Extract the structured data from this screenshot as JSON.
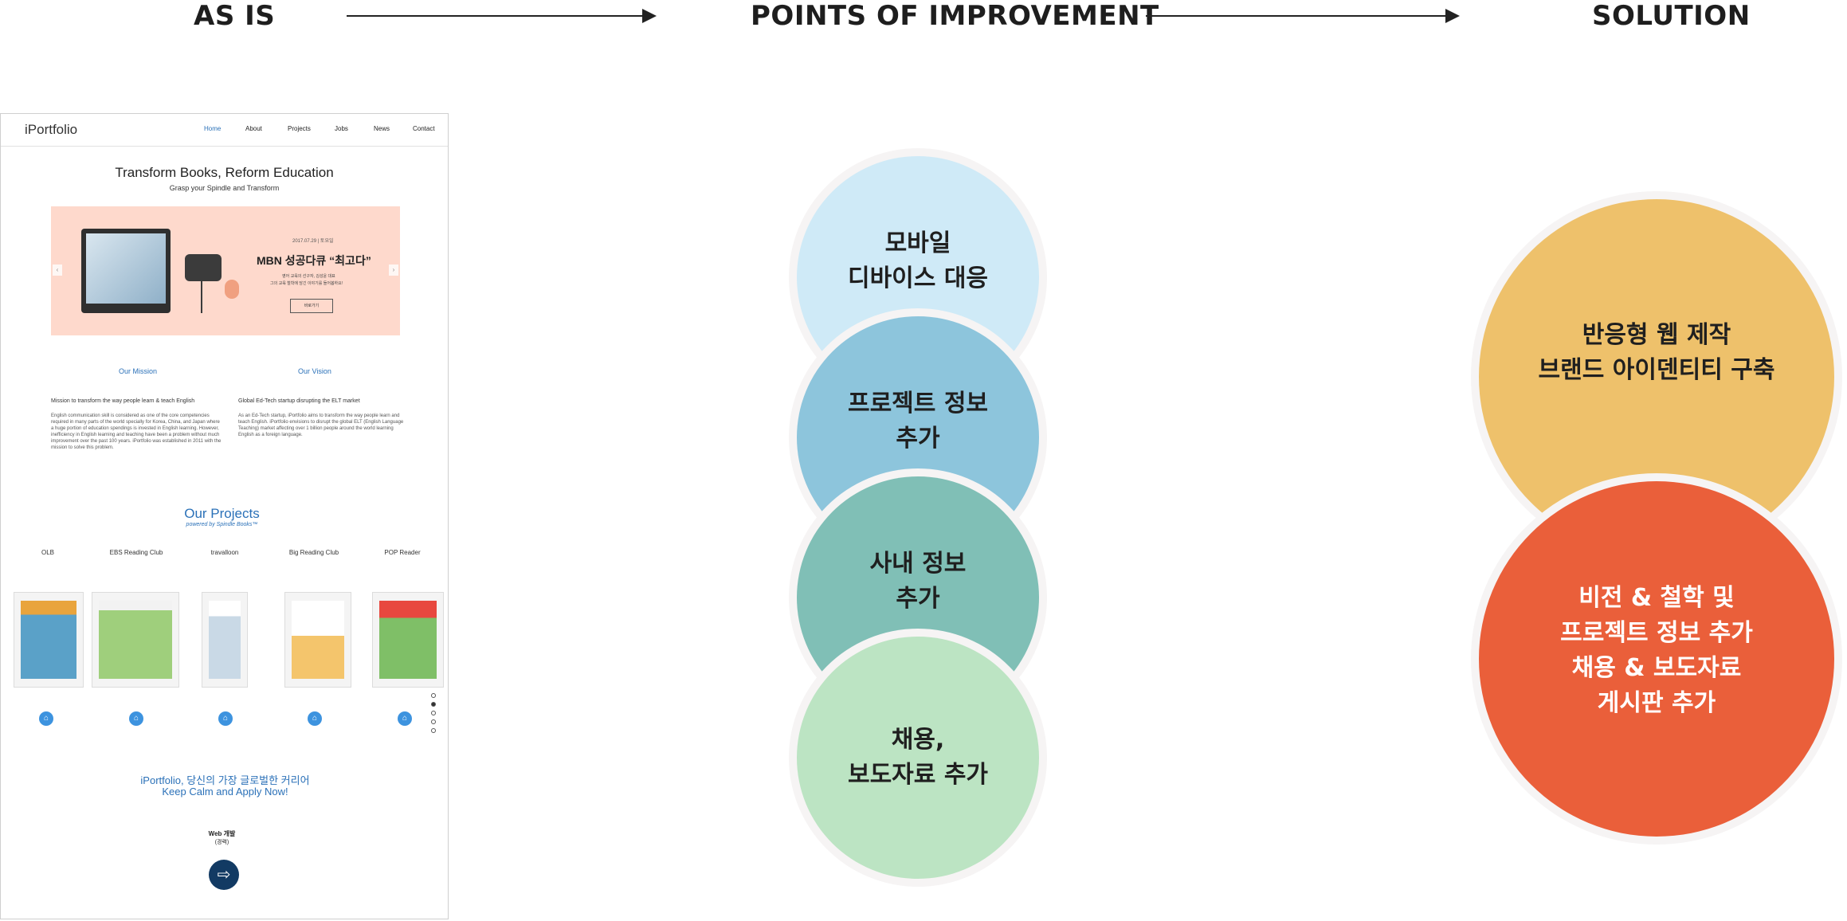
{
  "headers": {
    "as_is": "AS IS",
    "points": "POINTS OF IMPROVEMENT",
    "solution": "SOLUTION"
  },
  "site": {
    "logo": "iPortfolio",
    "nav": [
      "Home",
      "About",
      "Projects",
      "Jobs",
      "News",
      "Contact"
    ],
    "hero_title": "Transform Books, Reform Education",
    "hero_sub": "Grasp your Spindle and Transform",
    "banner": {
      "date": "2017.07.29 | 토요일",
      "title": "MBN 성공다큐 “최고다”",
      "line1": "영어 교육의 선구자, 김성윤 대표",
      "line2": "그의 교육 철학에 담긴 이야기를 들어봅하요!",
      "button": "바로가기"
    },
    "mission": {
      "heading": "Our Mission",
      "title": "Mission to transform the way people learn & teach English",
      "body": "English communication skill is considered as one of the core competencies required in many parts of the world specially for Korea, China, and Japan where a huge portion of education spendings is invested in English learning. However, inefficiency in English learning and teaching have been a problem without much improvement over the past 100 years. iPortfolio was established in 2011 with the mission to solve this problem."
    },
    "vision": {
      "heading": "Our Vision",
      "title": "Global Ed-Tech startup disrupting the ELT market",
      "body": "As an Ed-Tech startup, iPortfolio aims to transform the way people learn and teach English. iPortfolio envisions to disrupt the global ELT (English Language Teaching) market affecting over 1 billion people around the world learning English as a foreign language."
    },
    "projects_heading": "Our Projects",
    "projects_sub": "powered by Spindle Books™",
    "projects": [
      "OLB",
      "EBS Reading Club",
      "travalloon",
      "Big Reading Club",
      "POP Reader"
    ],
    "cta_line1": "iPortfolio, 당신의 가장 글로벌한 커리어",
    "cta_line2": "Keep Calm and Apply Now!",
    "job_title": "Web 개발",
    "job_sub": "(경력)"
  },
  "points": [
    {
      "lines": [
        "모바일",
        "디바이스 대응"
      ],
      "color": "#cfeaf7"
    },
    {
      "lines": [
        "프로젝트 정보",
        "추가"
      ],
      "color": "#8dc5dc"
    },
    {
      "lines": [
        "사내 정보",
        "추가"
      ],
      "color": "#80bfb6"
    },
    {
      "lines": [
        "채용,",
        "보도자료 추가"
      ],
      "color": "#bce4c3"
    }
  ],
  "solutions": [
    {
      "lines": [
        "반응형 웹 제작",
        "브랜드 아이덴티티 구축"
      ],
      "color": "#eec16b"
    },
    {
      "lines": [
        "비전 & 철학 및",
        "프로젝트 정보 추가",
        "채용 & 보도자료",
        "게시판 추가"
      ],
      "color": "#ea5f3a"
    }
  ]
}
